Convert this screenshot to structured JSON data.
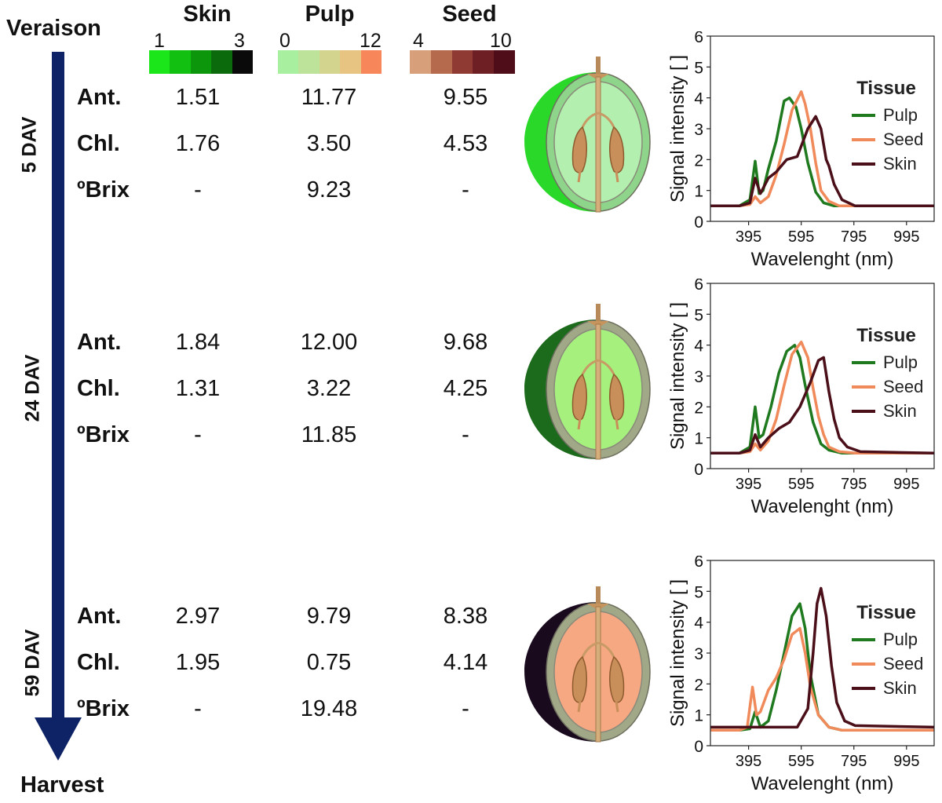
{
  "header": {
    "start_label": "Veraison",
    "end_label": "Harvest"
  },
  "scales": [
    {
      "title": "Skin",
      "min": "1",
      "max": "3",
      "colors": [
        "#1ae61a",
        "#12c012",
        "#0c960c",
        "#0b6a0b",
        "#0a0a0a"
      ]
    },
    {
      "title": "Pulp",
      "min": "0",
      "max": "12",
      "colors": [
        "#a8f0a0",
        "#bde29a",
        "#d3d58f",
        "#e8c483",
        "#f7875a"
      ]
    },
    {
      "title": "Seed",
      "min": "4",
      "max": "10",
      "colors": [
        "#d7a07a",
        "#b56a4e",
        "#8f3a33",
        "#6e1f24",
        "#4f0d1a"
      ]
    }
  ],
  "stages": [
    {
      "label": "5 DAV",
      "rows": [
        {
          "label": "Ant.",
          "skin": "1.51",
          "pulp": "11.77",
          "seed": "9.55"
        },
        {
          "label": "Chl.",
          "skin": "1.76",
          "pulp": "3.50",
          "seed": "4.53"
        },
        {
          "label": "ºBrix",
          "skin": "-",
          "pulp": "9.23",
          "seed": "-"
        }
      ],
      "berry": {
        "skin_color": "#2ad82a",
        "flesh_color": "#b3f0b0",
        "rim_color": "#8fd48b"
      }
    },
    {
      "label": "24 DAV",
      "rows": [
        {
          "label": "Ant.",
          "skin": "1.84",
          "pulp": "12.00",
          "seed": "9.68"
        },
        {
          "label": "Chl.",
          "skin": "1.31",
          "pulp": "3.22",
          "seed": "4.25"
        },
        {
          "label": "ºBrix",
          "skin": "-",
          "pulp": "11.85",
          "seed": "-"
        }
      ],
      "berry": {
        "skin_color": "#1c6a1c",
        "flesh_color": "#a6f07e",
        "rim_color": "#a0a888"
      }
    },
    {
      "label": "59 DAV",
      "rows": [
        {
          "label": "Ant.",
          "skin": "2.97",
          "pulp": "9.79",
          "seed": "8.38"
        },
        {
          "label": "Chl.",
          "skin": "1.95",
          "pulp": "0.75",
          "seed": "4.14"
        },
        {
          "label": "ºBrix",
          "skin": "-",
          "pulp": "19.48",
          "seed": "-"
        }
      ],
      "berry": {
        "skin_color": "#1a0a1e",
        "flesh_color": "#f6a882",
        "rim_color": "#a0a888"
      }
    }
  ],
  "chart_data": [
    {
      "type": "line",
      "ylabel": "Signal intensity [ ]",
      "xlabel": "Wavelenght (nm)",
      "xlim": [
        250,
        1100
      ],
      "ylim": [
        0,
        6
      ],
      "xticks": [
        395,
        595,
        795,
        995
      ],
      "yticks": [
        0,
        1,
        2,
        3,
        4,
        5,
        6
      ],
      "legend_title": "Tissue",
      "legend_position": "top-right",
      "series": [
        {
          "name": "Pulp",
          "color": "#1f7a1f",
          "x": [
            250,
            360,
            400,
            420,
            435,
            450,
            470,
            500,
            530,
            550,
            575,
            595,
            620,
            650,
            680,
            720,
            800,
            1100
          ],
          "y": [
            0.5,
            0.5,
            0.7,
            1.95,
            0.9,
            1.0,
            1.7,
            2.6,
            3.9,
            4.0,
            3.7,
            3.0,
            1.9,
            0.95,
            0.6,
            0.5,
            0.5,
            0.5
          ]
        },
        {
          "name": "Seed",
          "color": "#f08a5a",
          "x": [
            250,
            360,
            400,
            420,
            440,
            470,
            500,
            530,
            560,
            595,
            610,
            630,
            650,
            670,
            700,
            740,
            800,
            1100
          ],
          "y": [
            0.5,
            0.5,
            0.55,
            0.8,
            0.6,
            0.8,
            1.5,
            2.5,
            3.6,
            4.2,
            3.8,
            3.0,
            1.9,
            1.0,
            0.65,
            0.5,
            0.5,
            0.5
          ]
        },
        {
          "name": "Skin",
          "color": "#4a0f18",
          "x": [
            250,
            360,
            400,
            420,
            440,
            470,
            500,
            540,
            580,
            620,
            650,
            670,
            690,
            700,
            720,
            750,
            800,
            1100
          ],
          "y": [
            0.5,
            0.5,
            0.6,
            1.4,
            0.9,
            1.4,
            1.6,
            2.0,
            2.1,
            3.0,
            3.4,
            3.0,
            2.0,
            1.8,
            1.2,
            0.7,
            0.5,
            0.5
          ]
        }
      ]
    },
    {
      "type": "line",
      "ylabel": "Signal intensity [ ]",
      "xlabel": "Wavelenght (nm)",
      "xlim": [
        250,
        1100
      ],
      "ylim": [
        0,
        6
      ],
      "xticks": [
        395,
        595,
        795,
        995
      ],
      "yticks": [
        0,
        1,
        2,
        3,
        4,
        5,
        6
      ],
      "legend_title": "Tissue",
      "legend_position": "top-right",
      "series": [
        {
          "name": "Pulp",
          "color": "#1f7a1f",
          "x": [
            250,
            360,
            400,
            420,
            435,
            450,
            480,
            510,
            540,
            570,
            590,
            610,
            640,
            670,
            700,
            750,
            800,
            1100
          ],
          "y": [
            0.5,
            0.5,
            0.7,
            2.0,
            1.0,
            1.1,
            2.0,
            3.1,
            3.8,
            4.0,
            3.6,
            2.7,
            1.5,
            0.8,
            0.6,
            0.5,
            0.5,
            0.5
          ]
        },
        {
          "name": "Seed",
          "color": "#f08a5a",
          "x": [
            250,
            360,
            400,
            420,
            440,
            470,
            500,
            530,
            560,
            595,
            620,
            640,
            660,
            680,
            700,
            740,
            800,
            1100
          ],
          "y": [
            0.5,
            0.5,
            0.55,
            0.8,
            0.6,
            0.9,
            1.6,
            2.7,
            3.7,
            4.1,
            3.6,
            2.6,
            1.7,
            1.1,
            0.7,
            0.55,
            0.5,
            0.5
          ]
        },
        {
          "name": "Skin",
          "color": "#4a0f18",
          "x": [
            250,
            360,
            400,
            420,
            440,
            470,
            510,
            550,
            590,
            630,
            660,
            680,
            700,
            720,
            740,
            770,
            820,
            1100
          ],
          "y": [
            0.5,
            0.5,
            0.6,
            1.1,
            0.7,
            1.0,
            1.3,
            1.5,
            2.0,
            2.8,
            3.5,
            3.6,
            2.5,
            1.6,
            1.0,
            0.7,
            0.55,
            0.5
          ]
        }
      ]
    },
    {
      "type": "line",
      "ylabel": "Signal intensity [ ]",
      "xlabel": "Wavelenght (nm)",
      "xlim": [
        250,
        1100
      ],
      "ylim": [
        0,
        6
      ],
      "xticks": [
        395,
        595,
        795,
        995
      ],
      "yticks": [
        0,
        1,
        2,
        3,
        4,
        5,
        6
      ],
      "legend_title": "Tissue",
      "legend_position": "top-right",
      "series": [
        {
          "name": "Pulp",
          "color": "#1f7a1f",
          "x": [
            250,
            360,
            400,
            420,
            440,
            470,
            500,
            530,
            560,
            590,
            610,
            630,
            660,
            700,
            750,
            1100
          ],
          "y": [
            0.5,
            0.5,
            0.55,
            1.1,
            0.6,
            0.8,
            1.8,
            3.0,
            4.2,
            4.6,
            3.8,
            2.3,
            1.0,
            0.6,
            0.5,
            0.5
          ]
        },
        {
          "name": "Seed",
          "color": "#f08a5a",
          "x": [
            250,
            360,
            390,
            410,
            425,
            440,
            470,
            500,
            530,
            560,
            590,
            610,
            630,
            660,
            700,
            750,
            1100
          ],
          "y": [
            0.5,
            0.5,
            0.6,
            1.9,
            1.0,
            1.1,
            1.8,
            2.2,
            2.8,
            3.6,
            3.8,
            3.0,
            1.9,
            1.0,
            0.6,
            0.5,
            0.5
          ]
        },
        {
          "name": "Skin",
          "color": "#4a0f18",
          "x": [
            250,
            360,
            440,
            520,
            580,
            620,
            640,
            655,
            670,
            690,
            710,
            730,
            760,
            800,
            1100
          ],
          "y": [
            0.6,
            0.6,
            0.6,
            0.6,
            0.6,
            1.2,
            3.0,
            4.6,
            5.1,
            4.2,
            2.6,
            1.4,
            0.8,
            0.65,
            0.6
          ]
        }
      ]
    }
  ]
}
